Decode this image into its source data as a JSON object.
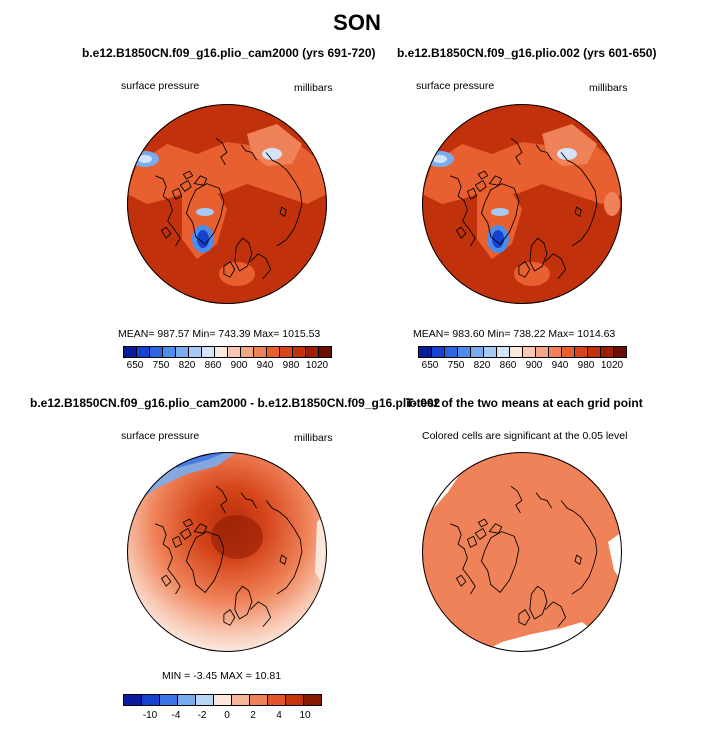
{
  "title": "SON",
  "colors": {
    "abs_scale": [
      "#081d9c",
      "#1742cf",
      "#2c66e3",
      "#4c8ceb",
      "#79acee",
      "#a7c9f3",
      "#d3e4f8",
      "#fbe6dc",
      "#f8c8b2",
      "#f4a583",
      "#ef8258",
      "#e8602f",
      "#d84617",
      "#c1320c",
      "#9c1f06",
      "#6b0e02"
    ],
    "diff_scale": [
      "#081d9c",
      "#1742cf",
      "#3b74e4",
      "#79acee",
      "#b9d6f6",
      "#fbe6dc",
      "#f6b596",
      "#ef8258",
      "#e4542a",
      "#c5340b",
      "#8a1904"
    ]
  },
  "panels": {
    "top_left": {
      "title": "b.e12.B1850CN.f09_g16.plio_cam2000 (yrs 691-720)",
      "left_label": "surface pressure",
      "right_label": "millibars",
      "stats": "MEAN= 987.57   Min= 743.39   Max= 1015.53",
      "ticks": [
        "650",
        "750",
        "820",
        "860",
        "900",
        "940",
        "980",
        "1020"
      ]
    },
    "top_right": {
      "title": "b.e12.B1850CN.f09_g16.plio.002 (yrs 601-650)",
      "left_label": "surface pressure",
      "right_label": "millibars",
      "stats": "MEAN= 983.60   Min= 738.22   Max= 1014.63",
      "ticks": [
        "650",
        "750",
        "820",
        "860",
        "900",
        "940",
        "980",
        "1020"
      ]
    },
    "bottom_left": {
      "title": "b.e12.B1850CN.f09_g16.plio_cam2000 - b.e12.B1850CN.f09_g16.plio.002",
      "left_label": "surface pressure",
      "right_label": "millibars",
      "stats": "MIN =   -3.45  MAX =   10.81",
      "ticks": [
        "-10",
        "-4",
        "-2",
        "0",
        "2",
        "4",
        "10"
      ]
    },
    "bottom_right": {
      "title": "T-test of the two means at each grid point",
      "subtitle": "Colored cells are significant at the 0.05 level"
    }
  }
}
